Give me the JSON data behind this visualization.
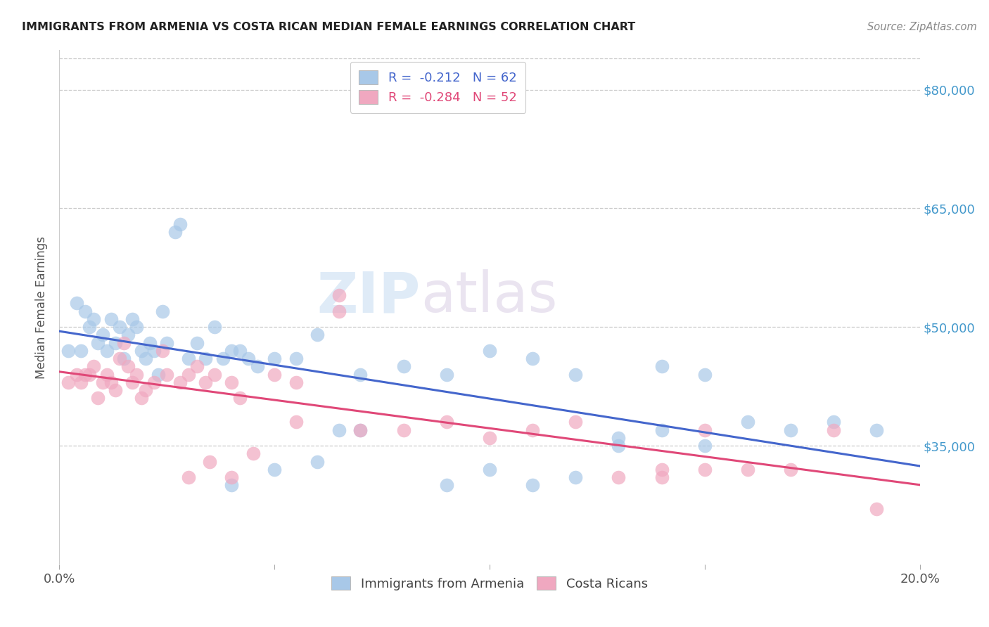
{
  "title": "IMMIGRANTS FROM ARMENIA VS COSTA RICAN MEDIAN FEMALE EARNINGS CORRELATION CHART",
  "source": "Source: ZipAtlas.com",
  "ylabel": "Median Female Earnings",
  "ytick_labels": [
    "$35,000",
    "$50,000",
    "$65,000",
    "$80,000"
  ],
  "ytick_values": [
    35000,
    50000,
    65000,
    80000
  ],
  "ymin": 20000,
  "ymax": 85000,
  "xmin": 0.0,
  "xmax": 0.2,
  "legend_r1": "R =  -0.212   N = 62",
  "legend_r2": "R =  -0.284   N = 52",
  "color_blue": "#a8c8e8",
  "color_pink": "#f0a8c0",
  "line_blue": "#4466cc",
  "line_pink": "#e04878",
  "background_color": "#ffffff",
  "grid_color": "#cccccc",
  "title_color": "#222222",
  "source_color": "#888888",
  "ylabel_color": "#555555",
  "ytick_color": "#4499cc",
  "watermark_zip": "ZIP",
  "watermark_atlas": "atlas",
  "blue_x": [
    0.002,
    0.004,
    0.005,
    0.006,
    0.007,
    0.008,
    0.009,
    0.01,
    0.011,
    0.012,
    0.013,
    0.014,
    0.015,
    0.016,
    0.017,
    0.018,
    0.019,
    0.02,
    0.021,
    0.022,
    0.023,
    0.024,
    0.025,
    0.027,
    0.028,
    0.03,
    0.032,
    0.034,
    0.036,
    0.038,
    0.04,
    0.042,
    0.044,
    0.046,
    0.05,
    0.055,
    0.06,
    0.065,
    0.07,
    0.08,
    0.09,
    0.1,
    0.11,
    0.12,
    0.13,
    0.14,
    0.15,
    0.16,
    0.17,
    0.18,
    0.14,
    0.15,
    0.1,
    0.12,
    0.09,
    0.11,
    0.13,
    0.07,
    0.06,
    0.05,
    0.04,
    0.19
  ],
  "blue_y": [
    47000,
    53000,
    47000,
    52000,
    50000,
    51000,
    48000,
    49000,
    47000,
    51000,
    48000,
    50000,
    46000,
    49000,
    51000,
    50000,
    47000,
    46000,
    48000,
    47000,
    44000,
    52000,
    48000,
    62000,
    63000,
    46000,
    48000,
    46000,
    50000,
    46000,
    47000,
    47000,
    46000,
    45000,
    46000,
    46000,
    49000,
    37000,
    44000,
    45000,
    44000,
    47000,
    46000,
    44000,
    36000,
    45000,
    44000,
    38000,
    37000,
    38000,
    37000,
    35000,
    32000,
    31000,
    30000,
    30000,
    35000,
    37000,
    33000,
    32000,
    30000,
    37000
  ],
  "pink_x": [
    0.002,
    0.004,
    0.005,
    0.006,
    0.007,
    0.008,
    0.009,
    0.01,
    0.011,
    0.012,
    0.013,
    0.014,
    0.015,
    0.016,
    0.017,
    0.018,
    0.019,
    0.02,
    0.022,
    0.024,
    0.025,
    0.028,
    0.03,
    0.032,
    0.034,
    0.036,
    0.04,
    0.042,
    0.05,
    0.055,
    0.065,
    0.07,
    0.08,
    0.09,
    0.1,
    0.11,
    0.12,
    0.13,
    0.14,
    0.15,
    0.16,
    0.17,
    0.18,
    0.055,
    0.065,
    0.035,
    0.045,
    0.03,
    0.04,
    0.15,
    0.19,
    0.14
  ],
  "pink_y": [
    43000,
    44000,
    43000,
    44000,
    44000,
    45000,
    41000,
    43000,
    44000,
    43000,
    42000,
    46000,
    48000,
    45000,
    43000,
    44000,
    41000,
    42000,
    43000,
    47000,
    44000,
    43000,
    44000,
    45000,
    43000,
    44000,
    43000,
    41000,
    44000,
    38000,
    52000,
    37000,
    37000,
    38000,
    36000,
    37000,
    38000,
    31000,
    31000,
    32000,
    32000,
    32000,
    37000,
    43000,
    54000,
    33000,
    34000,
    31000,
    31000,
    37000,
    27000,
    32000
  ]
}
